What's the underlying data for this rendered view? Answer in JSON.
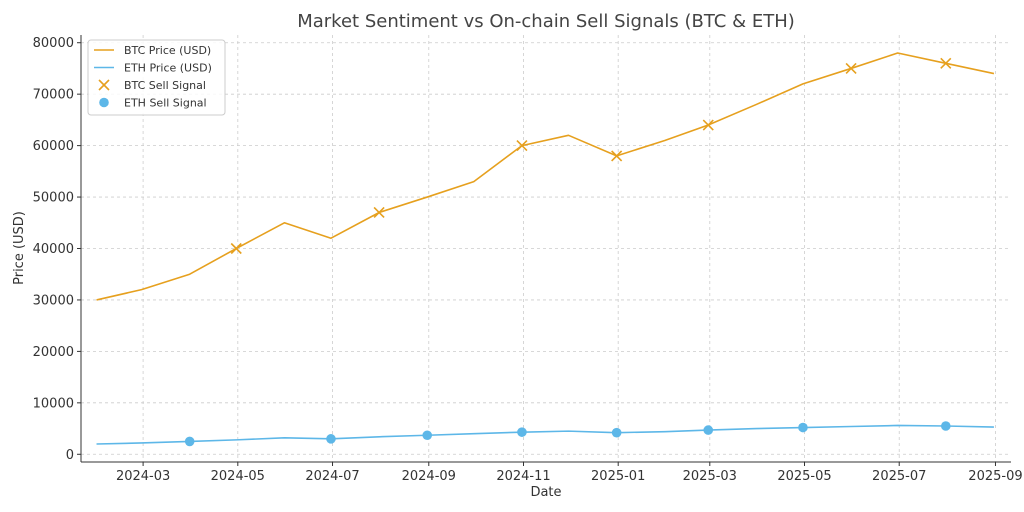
{
  "chart_data": {
    "type": "line",
    "title": "Market Sentiment vs On-chain Sell Signals (BTC & ETH)",
    "xlabel": "Date",
    "ylabel": "Price (USD)",
    "x_ticks": [
      "2024-03",
      "2024-05",
      "2024-07",
      "2024-09",
      "2024-11",
      "2025-01",
      "2025-03",
      "2025-05",
      "2025-07",
      "2025-09"
    ],
    "y_ticks": [
      0,
      10000,
      20000,
      30000,
      40000,
      50000,
      60000,
      70000,
      80000
    ],
    "xlim": [
      "2024-01-21",
      "2025-09-11"
    ],
    "ylim": [
      -1500,
      81500
    ],
    "grid": true,
    "legend_position": "top-left",
    "series": [
      {
        "name": "BTC Price (USD)",
        "kind": "line",
        "color": "#E6A01E",
        "x": [
          "2024-01-31",
          "2024-02-29",
          "2024-03-31",
          "2024-04-30",
          "2024-05-31",
          "2024-06-30",
          "2024-07-31",
          "2024-08-31",
          "2024-09-30",
          "2024-10-31",
          "2024-11-30",
          "2024-12-31",
          "2025-01-31",
          "2025-02-28",
          "2025-03-31",
          "2025-04-30",
          "2025-05-31",
          "2025-06-30",
          "2025-07-31",
          "2025-08-31"
        ],
        "values": [
          30000,
          32000,
          35000,
          40000,
          45000,
          42000,
          47000,
          50000,
          53000,
          60000,
          62000,
          58000,
          61000,
          64000,
          68000,
          72000,
          75000,
          78000,
          76000,
          74000
        ]
      },
      {
        "name": "ETH Price (USD)",
        "kind": "line",
        "color": "#5DB7E8",
        "x": [
          "2024-01-31",
          "2024-02-29",
          "2024-03-31",
          "2024-04-30",
          "2024-05-31",
          "2024-06-30",
          "2024-07-31",
          "2024-08-31",
          "2024-09-30",
          "2024-10-31",
          "2024-11-30",
          "2024-12-31",
          "2025-01-31",
          "2025-02-28",
          "2025-03-31",
          "2025-04-30",
          "2025-05-31",
          "2025-06-30",
          "2025-07-31",
          "2025-08-31"
        ],
        "values": [
          2000,
          2200,
          2500,
          2800,
          3200,
          3000,
          3400,
          3700,
          4000,
          4300,
          4500,
          4200,
          4400,
          4700,
          5000,
          5200,
          5400,
          5600,
          5500,
          5300
        ]
      },
      {
        "name": "BTC Sell Signal",
        "kind": "scatter",
        "marker": "x",
        "color": "#E6A01E",
        "x": [
          "2024-04-30",
          "2024-07-31",
          "2024-10-31",
          "2024-12-31",
          "2025-02-28",
          "2025-05-31",
          "2025-07-31"
        ],
        "values": [
          40000,
          47000,
          60000,
          58000,
          64000,
          75000,
          76000
        ]
      },
      {
        "name": "ETH Sell Signal",
        "kind": "scatter",
        "marker": "circle",
        "color": "#5DB7E8",
        "x": [
          "2024-03-31",
          "2024-06-30",
          "2024-08-31",
          "2024-10-31",
          "2024-12-31",
          "2025-02-28",
          "2025-04-30",
          "2025-07-31"
        ],
        "values": [
          2500,
          3000,
          3700,
          4300,
          4200,
          4700,
          5200,
          5500
        ]
      }
    ]
  }
}
